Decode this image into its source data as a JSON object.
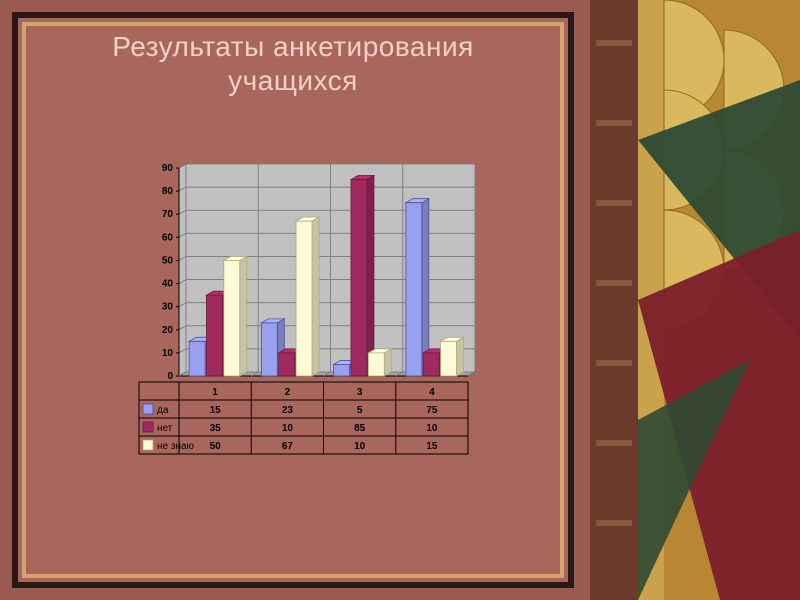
{
  "title_line1": "Результаты анкетирования",
  "title_line2": "учащихся",
  "chart": {
    "type": "bar",
    "categories": [
      "1",
      "2",
      "3",
      "4"
    ],
    "series": [
      {
        "name": "да",
        "color": "#9aa0f0",
        "edge": "#4b4f99",
        "values": [
          15,
          23,
          5,
          75
        ]
      },
      {
        "name": "нет",
        "color": "#a02a60",
        "edge": "#6c1c40",
        "values": [
          35,
          10,
          85,
          10
        ]
      },
      {
        "name": "не знаю",
        "color": "#fdfbd8",
        "edge": "#b2ab6c",
        "values": [
          50,
          67,
          10,
          15
        ]
      }
    ],
    "ylim": [
      0,
      90
    ],
    "ytick_step": 10,
    "plot_bg": "#c0c0c0",
    "wall_bg": "#c0c0c0",
    "floor_bg": "#a0a0a0",
    "grid_color": "#808080",
    "axis_color": "#000000",
    "table_border": "#000000",
    "font_color": "#000000",
    "font_size": 10,
    "bar_width": 0.72,
    "depth_x": 7,
    "depth_y": 4
  },
  "slide": {
    "bg": "#a8665c",
    "frame_outer": "#2a1814",
    "frame_inner": "#d4a36e",
    "title_color": "#f2d1c8",
    "title_fontsize": 28
  }
}
